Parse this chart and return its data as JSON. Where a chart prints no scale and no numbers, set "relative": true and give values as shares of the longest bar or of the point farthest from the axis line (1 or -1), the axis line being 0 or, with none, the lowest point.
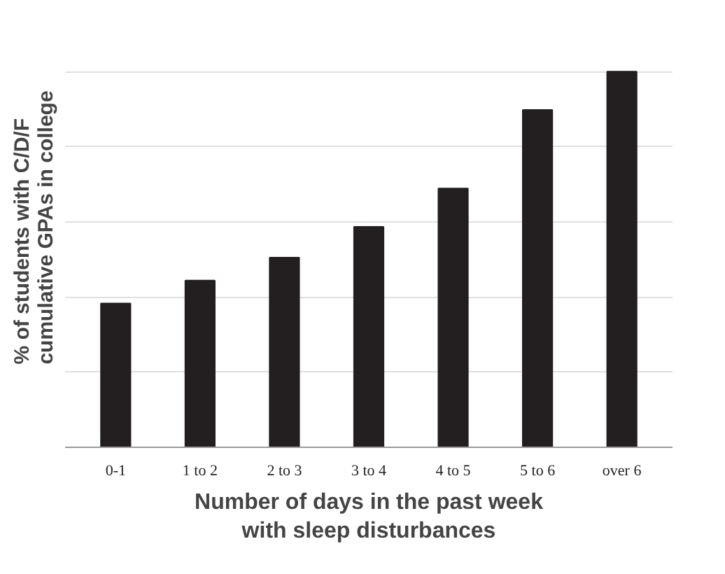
{
  "chart_data": {
    "type": "bar",
    "relative": true,
    "xlabel": "Number of days in the past week with sleep disturbances",
    "ylabel": "% of students with C/D/F cumulative GPAs in college",
    "categories": [
      "0-1",
      "1 to 2",
      "2 to 3",
      "3 to 4",
      "4 to 5",
      "5 to 6",
      "over 6"
    ],
    "values": [
      0.383,
      0.444,
      0.505,
      0.587,
      0.689,
      0.898,
      1
    ],
    "color": "#231f20",
    "grid": "y"
  }
}
